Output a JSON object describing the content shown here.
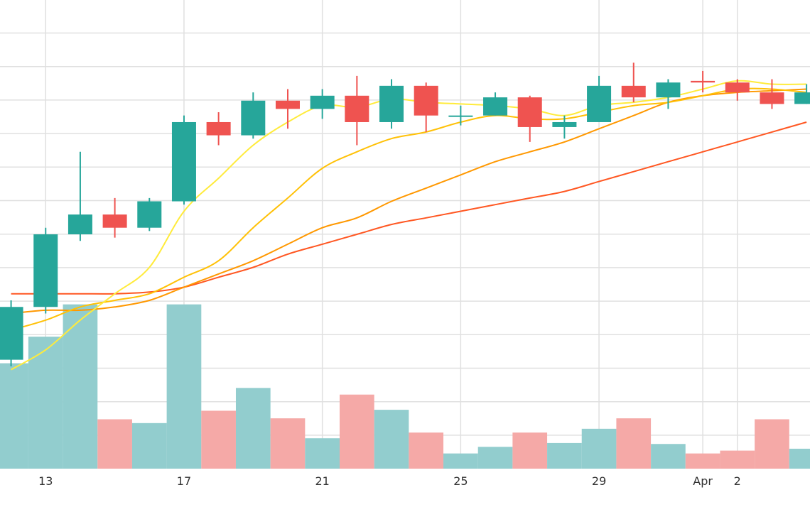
{
  "chart_data": {
    "type": "candlestick",
    "xlabel": "",
    "ylabel": "",
    "grid": true,
    "legend": "none",
    "x_ticks": [
      {
        "day": 13,
        "label": "13"
      },
      {
        "day": 17,
        "label": "17"
      },
      {
        "day": 21,
        "label": "21"
      },
      {
        "day": 25,
        "label": "25"
      },
      {
        "day": 29,
        "label": "29"
      },
      {
        "day": 33,
        "label": "2"
      },
      {
        "day": 32,
        "label": "Apr"
      }
    ],
    "x_range": [
      11.68,
      35.1
    ],
    "price_range": [
      -3.3,
      10.9
    ],
    "volume_range": [
      0,
      8.6
    ],
    "candles": [
      {
        "date": "Mar 12",
        "day": 12,
        "open": 0.0,
        "high": 1.8,
        "low": -0.2,
        "close": 1.6
      },
      {
        "date": "Mar 13",
        "day": 13,
        "open": 1.6,
        "high": 4.0,
        "low": 1.4,
        "close": 3.8
      },
      {
        "date": "Mar 14",
        "day": 14,
        "open": 3.8,
        "high": 6.3,
        "low": 3.6,
        "close": 4.4
      },
      {
        "date": "Mar 15",
        "day": 15,
        "open": 4.4,
        "high": 4.9,
        "low": 3.7,
        "close": 4.0
      },
      {
        "date": "Mar 16",
        "day": 16,
        "open": 4.0,
        "high": 4.9,
        "low": 3.9,
        "close": 4.8
      },
      {
        "date": "Mar 17",
        "day": 17,
        "open": 4.8,
        "high": 7.4,
        "low": 4.7,
        "close": 7.2
      },
      {
        "date": "Mar 18",
        "day": 18,
        "open": 7.2,
        "high": 7.5,
        "low": 6.5,
        "close": 6.8
      },
      {
        "date": "Mar 19",
        "day": 19,
        "open": 6.8,
        "high": 8.1,
        "low": 6.7,
        "close": 7.85
      },
      {
        "date": "Mar 20",
        "day": 20,
        "open": 7.85,
        "high": 8.2,
        "low": 7.0,
        "close": 7.6
      },
      {
        "date": "Mar 21",
        "day": 21,
        "open": 7.6,
        "high": 8.2,
        "low": 7.3,
        "close": 8.0
      },
      {
        "date": "Mar 22",
        "day": 22,
        "open": 8.0,
        "high": 8.6,
        "low": 6.5,
        "close": 7.2
      },
      {
        "date": "Mar 23",
        "day": 23,
        "open": 7.2,
        "high": 8.5,
        "low": 7.0,
        "close": 8.3
      },
      {
        "date": "Mar 24",
        "day": 24,
        "open": 8.3,
        "high": 8.4,
        "low": 6.9,
        "close": 7.4
      },
      {
        "date": "Mar 25",
        "day": 25,
        "open": 7.4,
        "high": 7.7,
        "low": 7.1,
        "close": 7.4
      },
      {
        "date": "Mar 26",
        "day": 26,
        "open": 7.4,
        "high": 8.1,
        "low": 7.4,
        "close": 7.95
      },
      {
        "date": "Mar 27",
        "day": 27,
        "open": 7.95,
        "high": 8.0,
        "low": 6.6,
        "close": 7.05
      },
      {
        "date": "Mar 28",
        "day": 28,
        "open": 7.05,
        "high": 7.4,
        "low": 6.7,
        "close": 7.2
      },
      {
        "date": "Mar 29",
        "day": 29,
        "open": 7.2,
        "high": 8.6,
        "low": 7.2,
        "close": 8.3
      },
      {
        "date": "Mar 30",
        "day": 30,
        "open": 8.3,
        "high": 9.0,
        "low": 7.8,
        "close": 7.95
      },
      {
        "date": "Mar 31",
        "day": 31,
        "open": 7.95,
        "high": 8.5,
        "low": 7.6,
        "close": 8.4
      },
      {
        "date": "Apr 1",
        "day": 32,
        "open": 8.45,
        "high": 8.75,
        "low": 8.1,
        "close": 8.4
      },
      {
        "date": "Apr 2",
        "day": 33,
        "open": 8.4,
        "high": 8.5,
        "low": 7.85,
        "close": 8.1
      },
      {
        "date": "Apr 3",
        "day": 34,
        "open": 8.1,
        "high": 8.5,
        "low": 7.6,
        "close": 7.75
      },
      {
        "date": "Apr 4",
        "day": 35,
        "open": 7.75,
        "high": 8.35,
        "low": 7.75,
        "close": 8.1
      }
    ],
    "volumes": [
      {
        "day": 12,
        "value": 5.55,
        "direction": "up"
      },
      {
        "day": 13,
        "value": 6.95,
        "direction": "up"
      },
      {
        "day": 14,
        "value": 8.65,
        "direction": "up"
      },
      {
        "day": 15,
        "value": 2.6,
        "direction": "down"
      },
      {
        "day": 16,
        "value": 2.4,
        "direction": "up"
      },
      {
        "day": 17,
        "value": 8.65,
        "direction": "up"
      },
      {
        "day": 18,
        "value": 3.05,
        "direction": "down"
      },
      {
        "day": 19,
        "value": 4.25,
        "direction": "up"
      },
      {
        "day": 20,
        "value": 2.65,
        "direction": "down"
      },
      {
        "day": 21,
        "value": 1.6,
        "direction": "up"
      },
      {
        "day": 22,
        "value": 3.9,
        "direction": "down"
      },
      {
        "day": 23,
        "value": 3.1,
        "direction": "up"
      },
      {
        "day": 24,
        "value": 1.9,
        "direction": "down"
      },
      {
        "day": 25,
        "value": 0.8,
        "direction": "up"
      },
      {
        "day": 26,
        "value": 1.15,
        "direction": "up"
      },
      {
        "day": 27,
        "value": 1.9,
        "direction": "down"
      },
      {
        "day": 28,
        "value": 1.35,
        "direction": "up"
      },
      {
        "day": 29,
        "value": 2.1,
        "direction": "up"
      },
      {
        "day": 30,
        "value": 2.65,
        "direction": "down"
      },
      {
        "day": 31,
        "value": 1.3,
        "direction": "up"
      },
      {
        "day": 32,
        "value": 0.8,
        "direction": "down"
      },
      {
        "day": 33,
        "value": 0.95,
        "direction": "down"
      },
      {
        "day": 34,
        "value": 2.6,
        "direction": "down"
      },
      {
        "day": 35,
        "value": 1.05,
        "direction": "up"
      }
    ],
    "moving_averages": [
      {
        "color": "#ffeb3b",
        "points": [
          [
            12,
            -0.3
          ],
          [
            13,
            0.3
          ],
          [
            14,
            1.2
          ],
          [
            15,
            2.0
          ],
          [
            16,
            2.8
          ],
          [
            17,
            4.5
          ],
          [
            18,
            5.5
          ],
          [
            19,
            6.5
          ],
          [
            20,
            7.2
          ],
          [
            21,
            7.7
          ],
          [
            22,
            7.65
          ],
          [
            23,
            7.9
          ],
          [
            24,
            7.8
          ],
          [
            25,
            7.75
          ],
          [
            26,
            7.7
          ],
          [
            27,
            7.6
          ],
          [
            28,
            7.4
          ],
          [
            29,
            7.7
          ],
          [
            30,
            7.8
          ],
          [
            31,
            7.95
          ],
          [
            32,
            8.2
          ],
          [
            33,
            8.45
          ],
          [
            34,
            8.35
          ],
          [
            35,
            8.35
          ]
        ]
      },
      {
        "color": "#ffc107",
        "points": [
          [
            12,
            0.9
          ],
          [
            13,
            1.2
          ],
          [
            14,
            1.6
          ],
          [
            15,
            1.8
          ],
          [
            16,
            2.0
          ],
          [
            17,
            2.5
          ],
          [
            18,
            3.0
          ],
          [
            19,
            4.0
          ],
          [
            20,
            4.9
          ],
          [
            21,
            5.8
          ],
          [
            22,
            6.3
          ],
          [
            23,
            6.7
          ],
          [
            24,
            6.9
          ],
          [
            25,
            7.2
          ],
          [
            26,
            7.4
          ],
          [
            27,
            7.3
          ],
          [
            28,
            7.3
          ],
          [
            29,
            7.5
          ],
          [
            30,
            7.7
          ],
          [
            31,
            7.8
          ],
          [
            32,
            8.0
          ],
          [
            33,
            8.2
          ],
          [
            34,
            8.2
          ],
          [
            35,
            8.1
          ]
        ]
      },
      {
        "color": "#ff9800",
        "points": [
          [
            12,
            1.4
          ],
          [
            13,
            1.5
          ],
          [
            14,
            1.5
          ],
          [
            15,
            1.6
          ],
          [
            16,
            1.8
          ],
          [
            17,
            2.2
          ],
          [
            18,
            2.6
          ],
          [
            19,
            3.0
          ],
          [
            20,
            3.5
          ],
          [
            21,
            4.0
          ],
          [
            22,
            4.3
          ],
          [
            23,
            4.8
          ],
          [
            24,
            5.2
          ],
          [
            25,
            5.6
          ],
          [
            26,
            6.0
          ],
          [
            27,
            6.3
          ],
          [
            28,
            6.6
          ],
          [
            29,
            7.0
          ],
          [
            30,
            7.4
          ],
          [
            31,
            7.8
          ],
          [
            32,
            8.0
          ],
          [
            33,
            8.1
          ],
          [
            34,
            8.15
          ],
          [
            35,
            8.2
          ]
        ]
      },
      {
        "color": "#ff5722",
        "points": [
          [
            12,
            2.0
          ],
          [
            13,
            2.0
          ],
          [
            14,
            2.0
          ],
          [
            15,
            2.0
          ],
          [
            16,
            2.05
          ],
          [
            17,
            2.2
          ],
          [
            18,
            2.5
          ],
          [
            19,
            2.8
          ],
          [
            20,
            3.2
          ],
          [
            21,
            3.5
          ],
          [
            22,
            3.8
          ],
          [
            23,
            4.1
          ],
          [
            24,
            4.3
          ],
          [
            25,
            4.5
          ],
          [
            26,
            4.7
          ],
          [
            27,
            4.9
          ],
          [
            28,
            5.1
          ],
          [
            29,
            5.4
          ],
          [
            30,
            5.7
          ],
          [
            31,
            6.0
          ],
          [
            32,
            6.3
          ],
          [
            33,
            6.6
          ],
          [
            34,
            6.9
          ],
          [
            35,
            7.2
          ]
        ]
      }
    ],
    "colors": {
      "up": "#26a69a",
      "down": "#ef5350",
      "volume_up": "#92cdce",
      "volume_down": "#f5a9a7",
      "grid": "#e0e0e0"
    }
  }
}
